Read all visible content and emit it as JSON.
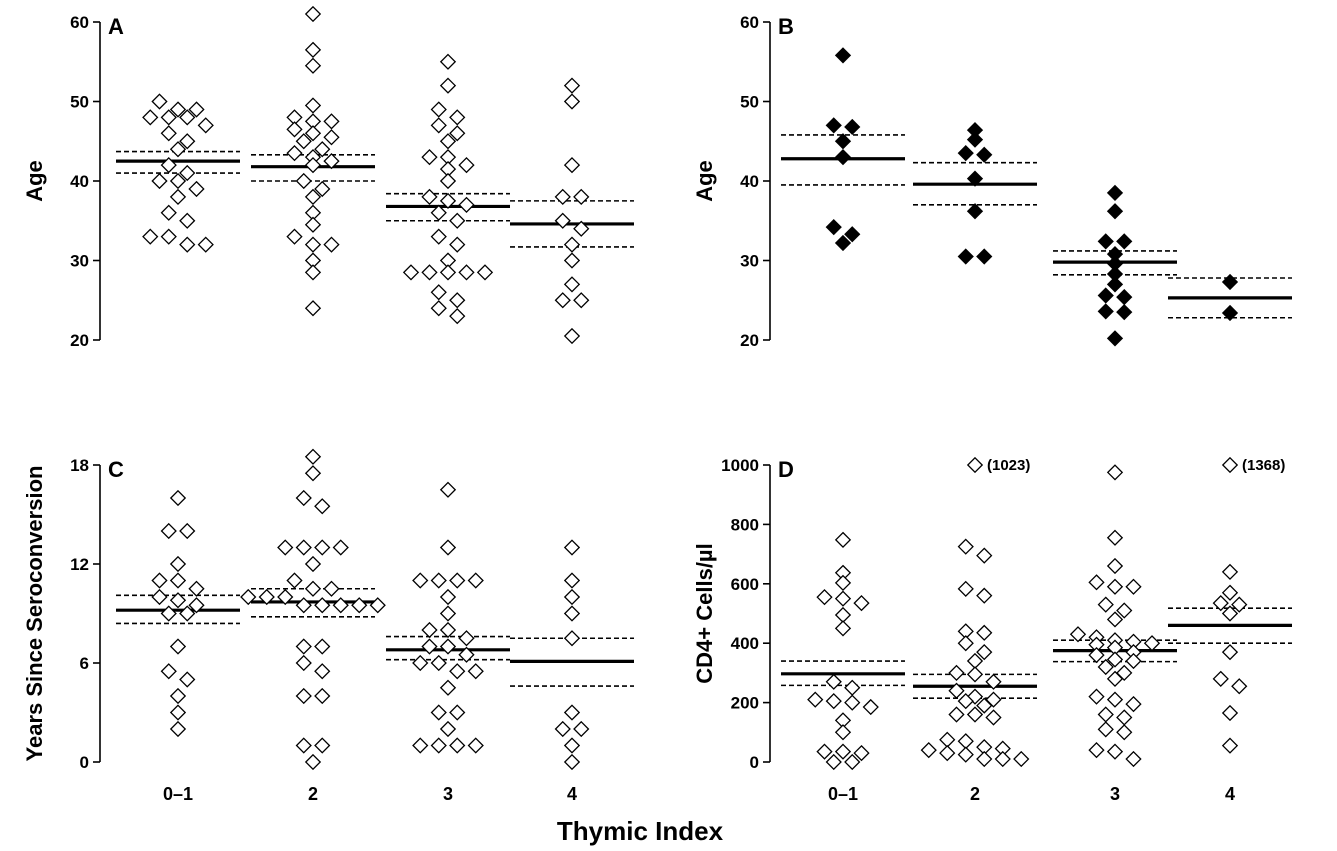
{
  "figure": {
    "shared_xlabel": "Thymic Index"
  },
  "chart_data": [
    {
      "panel": "A",
      "type": "scatter",
      "xlabel": "",
      "ylabel": "Age",
      "categories": [
        "0–1",
        "2",
        "3",
        "4"
      ],
      "ylim": [
        20,
        60
      ],
      "yticks": [
        20,
        30,
        40,
        50,
        60
      ],
      "marker": "open-diamond",
      "show_category_labels": false,
      "series": [
        {
          "category": "0–1",
          "mean": 42.5,
          "se_low": 41,
          "se_high": 43.7,
          "points": [
            50,
            49,
            49,
            48,
            48,
            48,
            47,
            46,
            45,
            44,
            42,
            41,
            40,
            40,
            39,
            38,
            36,
            35,
            33,
            33,
            32,
            32
          ]
        },
        {
          "category": "2",
          "mean": 41.8,
          "se_low": 40,
          "se_high": 43.3,
          "points": [
            61,
            56.5,
            54.5,
            49.5,
            48,
            47.5,
            47.5,
            46.5,
            46,
            45.5,
            45,
            44,
            43.5,
            43,
            42.5,
            42,
            40,
            39,
            38,
            36,
            34.5,
            33,
            32,
            32,
            30,
            28.5,
            24
          ]
        },
        {
          "category": "3",
          "mean": 36.8,
          "se_low": 35,
          "se_high": 38.4,
          "points": [
            55,
            52,
            49,
            48,
            47,
            46,
            45,
            43,
            43,
            42,
            41.5,
            40,
            38,
            37.5,
            37,
            36,
            35,
            33,
            32,
            30,
            28.5,
            28.5,
            28.5,
            28.5,
            28.5,
            26,
            25,
            24,
            23
          ]
        },
        {
          "category": "4",
          "mean": 34.6,
          "se_low": 31.7,
          "se_high": 37.5,
          "points": [
            52,
            50,
            42,
            38,
            38,
            35,
            34,
            32,
            30,
            27,
            25,
            25,
            20.5
          ]
        }
      ]
    },
    {
      "panel": "B",
      "type": "scatter",
      "xlabel": "",
      "ylabel": "Age",
      "categories": [
        "0–1",
        "2",
        "3",
        "4"
      ],
      "ylim": [
        20,
        60
      ],
      "yticks": [
        20,
        30,
        40,
        50,
        60
      ],
      "marker": "filled-diamond",
      "show_category_labels": false,
      "series": [
        {
          "category": "0–1",
          "mean": 42.8,
          "se_low": 39.5,
          "se_high": 45.8,
          "points": [
            55.8,
            47,
            46.8,
            45,
            43,
            34.2,
            33.3,
            32.2
          ]
        },
        {
          "category": "2",
          "mean": 39.6,
          "se_low": 37,
          "se_high": 42.3,
          "points": [
            46.4,
            45.2,
            43.5,
            43.3,
            40.3,
            36.2,
            30.5,
            30.5
          ]
        },
        {
          "category": "3",
          "mean": 29.8,
          "se_low": 28.2,
          "se_high": 31.2,
          "points": [
            38.5,
            36.2,
            32.4,
            32.4,
            30.8,
            29.6,
            28.3,
            27,
            25.6,
            25.4,
            23.6,
            23.5,
            20.2
          ]
        },
        {
          "category": "4",
          "mean": 25.3,
          "se_low": 22.8,
          "se_high": 27.8,
          "points": [
            27.3,
            23.4
          ]
        }
      ]
    },
    {
      "panel": "C",
      "type": "scatter",
      "xlabel": "",
      "ylabel": "Years Since Seroconversion",
      "categories": [
        "0–1",
        "2",
        "3",
        "4"
      ],
      "ylim": [
        0,
        18
      ],
      "yticks": [
        0,
        6,
        12,
        18
      ],
      "marker": "open-diamond",
      "show_category_labels": true,
      "series": [
        {
          "category": "0–1",
          "mean": 9.2,
          "se_low": 8.4,
          "se_high": 10.1,
          "points": [
            16,
            14,
            14,
            12,
            11,
            11,
            10.5,
            10,
            9.8,
            9.5,
            9,
            9,
            7,
            5.5,
            5,
            4,
            3,
            2
          ]
        },
        {
          "category": "2",
          "mean": 9.7,
          "se_low": 8.8,
          "se_high": 10.5,
          "points": [
            18.5,
            17.5,
            16,
            15.5,
            13,
            13,
            13,
            13,
            12,
            11,
            10.5,
            10.5,
            10,
            10,
            10,
            9.5,
            9.5,
            9.5,
            9.5,
            9.5,
            7,
            7,
            6,
            5.5,
            4,
            4,
            1,
            1,
            0
          ]
        },
        {
          "category": "3",
          "mean": 6.8,
          "se_low": 6.2,
          "se_high": 7.6,
          "points": [
            16.5,
            13,
            11,
            11,
            11,
            11,
            10,
            9,
            8,
            8,
            7.5,
            7,
            7,
            6.5,
            6,
            6,
            5.5,
            5.5,
            4.5,
            3,
            3,
            2,
            1,
            1,
            1,
            1
          ]
        },
        {
          "category": "4",
          "mean": 6.1,
          "se_low": 4.6,
          "se_high": 7.5,
          "points": [
            13,
            11,
            10,
            9,
            7.5,
            3,
            2,
            2,
            1,
            0
          ]
        }
      ]
    },
    {
      "panel": "D",
      "type": "scatter",
      "xlabel": "",
      "ylabel": "CD4+ Cells/µl",
      "categories": [
        "0–1",
        "2",
        "3",
        "4"
      ],
      "ylim": [
        0,
        1000
      ],
      "yticks": [
        0,
        200,
        400,
        600,
        800,
        1000
      ],
      "marker": "open-diamond",
      "show_category_labels": true,
      "series": [
        {
          "category": "0–1",
          "mean": 297,
          "se_low": 258,
          "se_high": 340,
          "points": [
            748,
            637,
            603,
            555,
            550,
            535,
            495,
            450,
            270,
            250,
            210,
            205,
            200,
            185,
            140,
            100,
            35,
            35,
            30,
            0,
            0
          ]
        },
        {
          "category": "2",
          "mean": 255,
          "se_low": 215,
          "se_high": 295,
          "points": [
            1000,
            725,
            695,
            583,
            560,
            435,
            440,
            400,
            370,
            340,
            300,
            295,
            270,
            240,
            220,
            210,
            205,
            190,
            160,
            160,
            150,
            75,
            70,
            50,
            45,
            40,
            30,
            25,
            10,
            10,
            10
          ],
          "outlier_note": "(1023)"
        },
        {
          "category": "3",
          "mean": 375,
          "se_low": 338,
          "se_high": 410,
          "points": [
            975,
            755,
            660,
            605,
            590,
            590,
            530,
            510,
            480,
            430,
            420,
            410,
            405,
            400,
            395,
            385,
            370,
            360,
            345,
            340,
            320,
            300,
            280,
            220,
            210,
            195,
            160,
            150,
            110,
            100,
            40,
            35,
            10
          ]
        },
        {
          "category": "4",
          "mean": 460,
          "se_low": 400,
          "se_high": 518,
          "points": [
            1000,
            640,
            570,
            535,
            530,
            500,
            370,
            280,
            255,
            165,
            55
          ],
          "outlier_note": "(1368)"
        }
      ]
    }
  ]
}
